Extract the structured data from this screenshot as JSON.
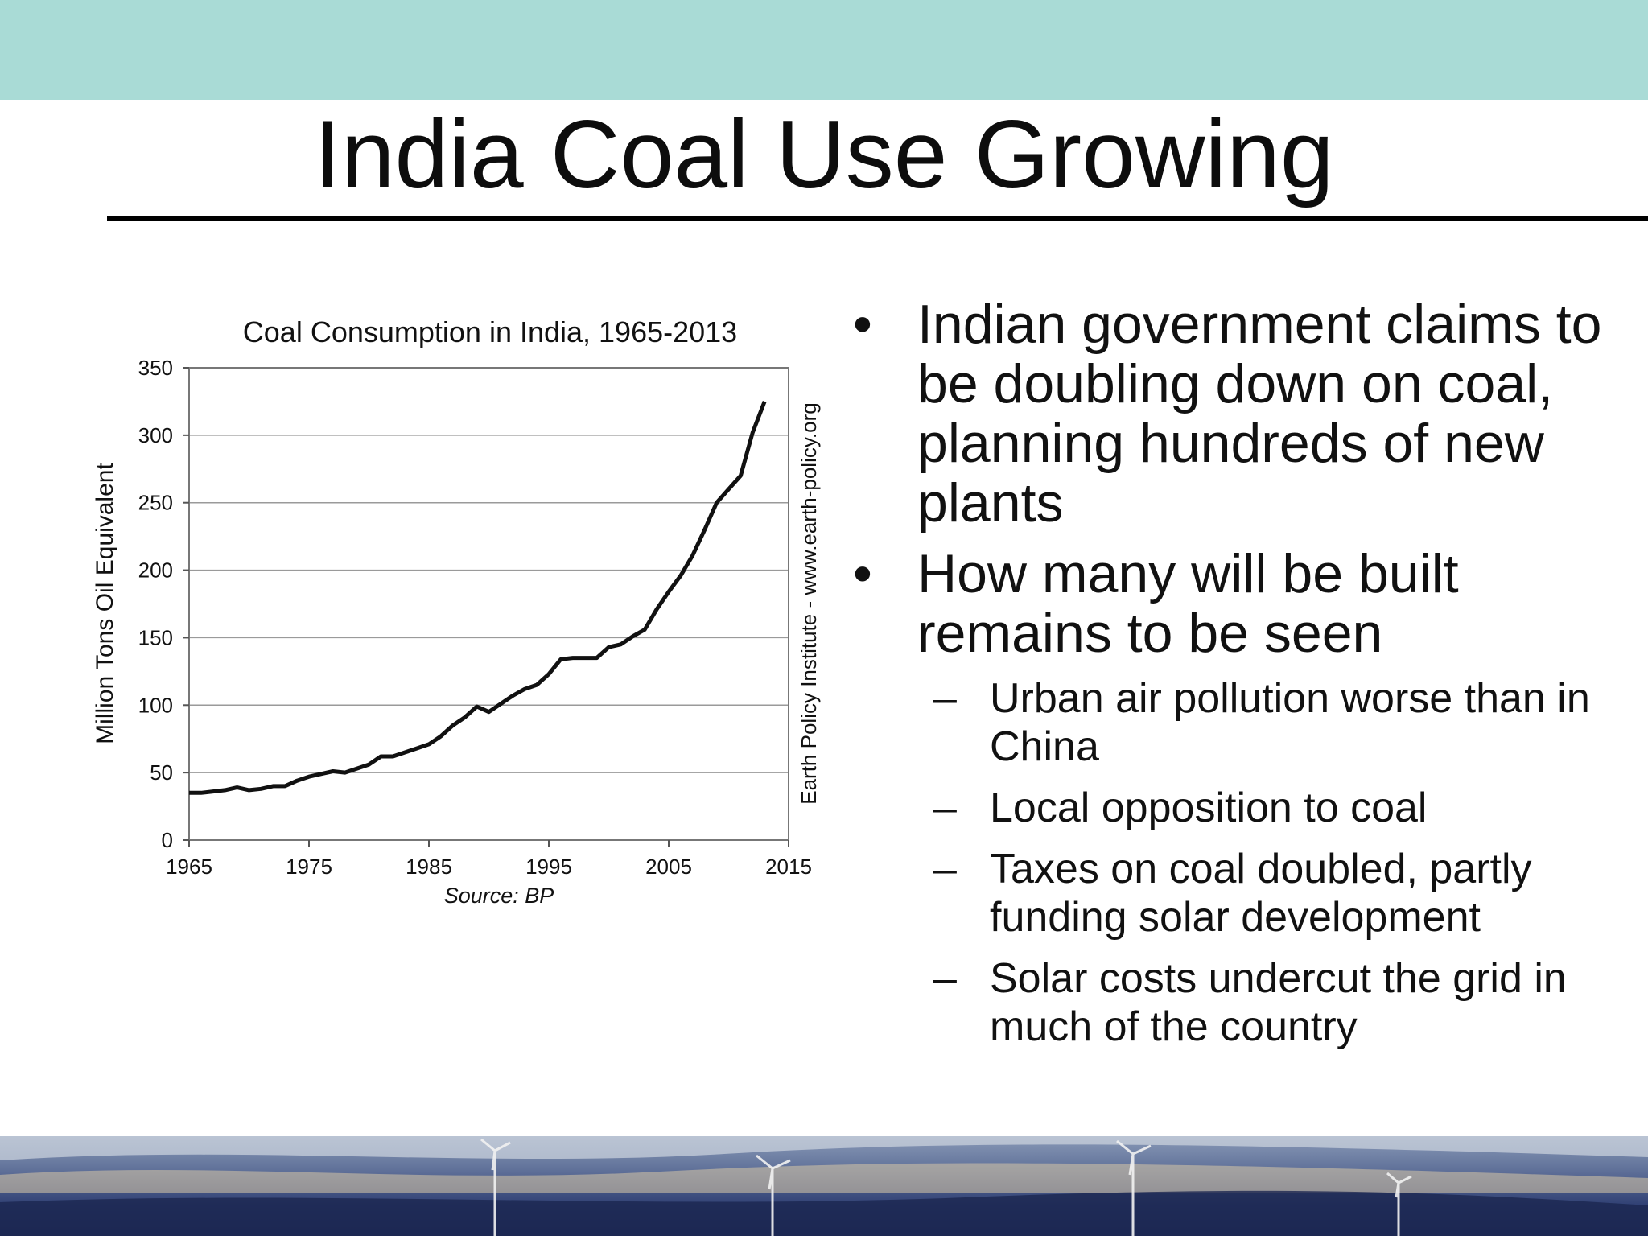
{
  "slide": {
    "title": "India Coal Use Growing",
    "colors": {
      "top_band": "#a9dbd6",
      "line": "#111111",
      "grid": "#9a9a9a"
    }
  },
  "chart": {
    "side_label": "Earth Policy Institute - www.earth-policy.org",
    "source": "Source: BP"
  },
  "chart_data": {
    "type": "line",
    "title": "Coal Consumption in India, 1965-2013",
    "xlabel": "",
    "ylabel": "Million Tons Oil Equivalent",
    "xlim": [
      1965,
      2015
    ],
    "ylim": [
      0,
      350
    ],
    "x_ticks": [
      "1965",
      "1975",
      "1985",
      "1995",
      "2005",
      "2015"
    ],
    "y_ticks": [
      "0",
      "50",
      "100",
      "150",
      "200",
      "250",
      "300",
      "350"
    ],
    "grid": true,
    "x": [
      1965,
      1966,
      1967,
      1968,
      1969,
      1970,
      1971,
      1972,
      1973,
      1974,
      1975,
      1976,
      1977,
      1978,
      1979,
      1980,
      1981,
      1982,
      1983,
      1984,
      1985,
      1986,
      1987,
      1988,
      1989,
      1990,
      1991,
      1992,
      1993,
      1994,
      1995,
      1996,
      1997,
      1998,
      1999,
      2000,
      2001,
      2002,
      2003,
      2004,
      2005,
      2006,
      2007,
      2008,
      2009,
      2010,
      2011,
      2012,
      2013
    ],
    "series": [
      {
        "values": [
          35,
          35,
          36,
          37,
          39,
          37,
          38,
          40,
          40,
          44,
          47,
          49,
          51,
          50,
          53,
          56,
          62,
          62,
          65,
          68,
          71,
          77,
          85,
          91,
          99,
          95,
          101,
          107,
          112,
          115,
          123,
          134,
          135,
          135,
          135,
          143,
          145,
          151,
          156,
          171,
          184,
          196,
          211,
          230,
          250,
          260,
          270,
          302,
          325
        ]
      }
    ]
  },
  "bullets": [
    {
      "mark": "•",
      "text": "Indian government claims to be doubling down on coal, planning hundreds of new plants"
    },
    {
      "mark": "•",
      "text": "How many will be built remains to be seen"
    }
  ],
  "sub_bullets": [
    {
      "mark": "–",
      "text": "Urban air pollution worse than in China"
    },
    {
      "mark": "–",
      "text": "Local opposition to coal"
    },
    {
      "mark": "–",
      "text": "Taxes on coal doubled, partly funding solar development"
    },
    {
      "mark": "–",
      "text": "Solar costs undercut the grid in much of the country"
    }
  ]
}
